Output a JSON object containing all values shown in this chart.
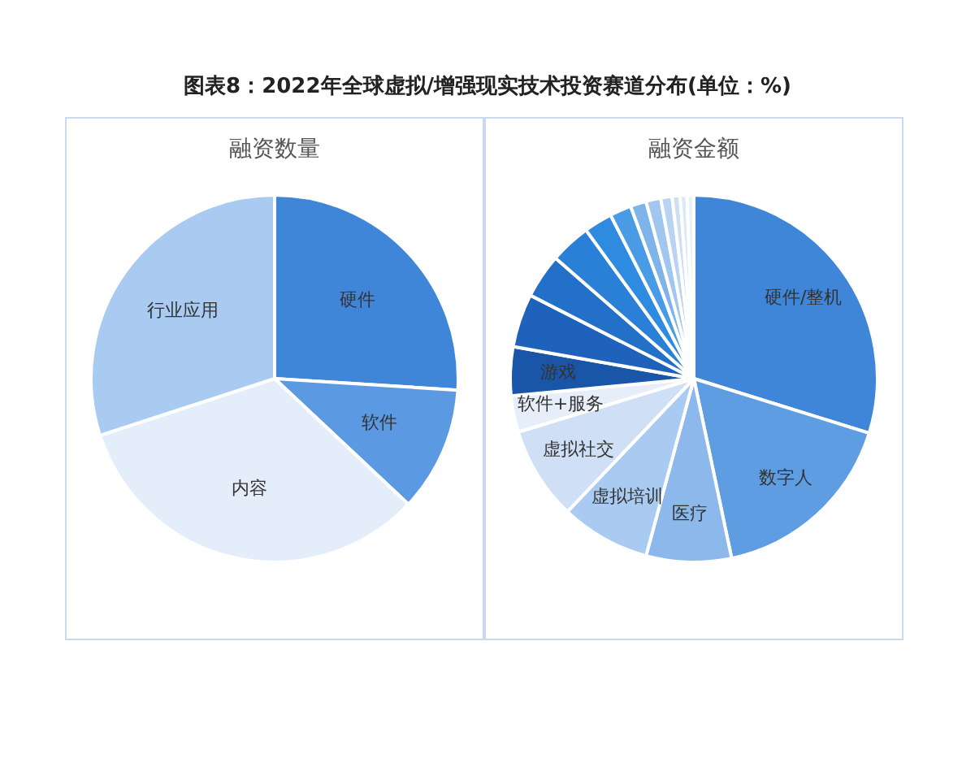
{
  "chart_data": [
    {
      "type": "pie",
      "title": "图表8：2022年全球虚拟/增强现实技术投资赛道分布(单位：%)",
      "subtitle": "融资数量",
      "categories": [
        "硬件",
        "软件",
        "内容",
        "行业应用"
      ],
      "values": [
        26,
        11,
        33,
        30
      ],
      "colors": [
        "#3f86d8",
        "#5b9ae2",
        "#e4eefa",
        "#a9cbf2"
      ],
      "legend": false
    },
    {
      "type": "pie",
      "title": "融资金额",
      "categories": [
        "硬件/整机",
        "数字人",
        "医疗",
        "虚拟培训",
        "虚拟社交",
        "软件+服务",
        "游戏",
        null,
        null,
        null,
        null,
        null,
        null,
        null,
        null,
        null,
        null,
        null
      ],
      "values": [
        29.8,
        16.9,
        7.5,
        7.9,
        8.2,
        3.2,
        4.3,
        4.7,
        3.9,
        3.6,
        2.5,
        1.9,
        1.4,
        1.3,
        1.0,
        0.7,
        0.6,
        0.6
      ],
      "colors": [
        "#3f86d8",
        "#5f9de3",
        "#8cb8ec",
        "#a9cbf2",
        "#cfe0f6",
        "#e6eef9",
        "#1a56a8",
        "#1e62bb",
        "#2270c8",
        "#2a7fd6",
        "#2f8be0",
        "#4a9be6",
        "#7fb4ea",
        "#a1c6ef",
        "#b9d4f2",
        "#cddff5",
        "#dde8f7",
        "#eaf1fa"
      ],
      "legend": false
    }
  ]
}
